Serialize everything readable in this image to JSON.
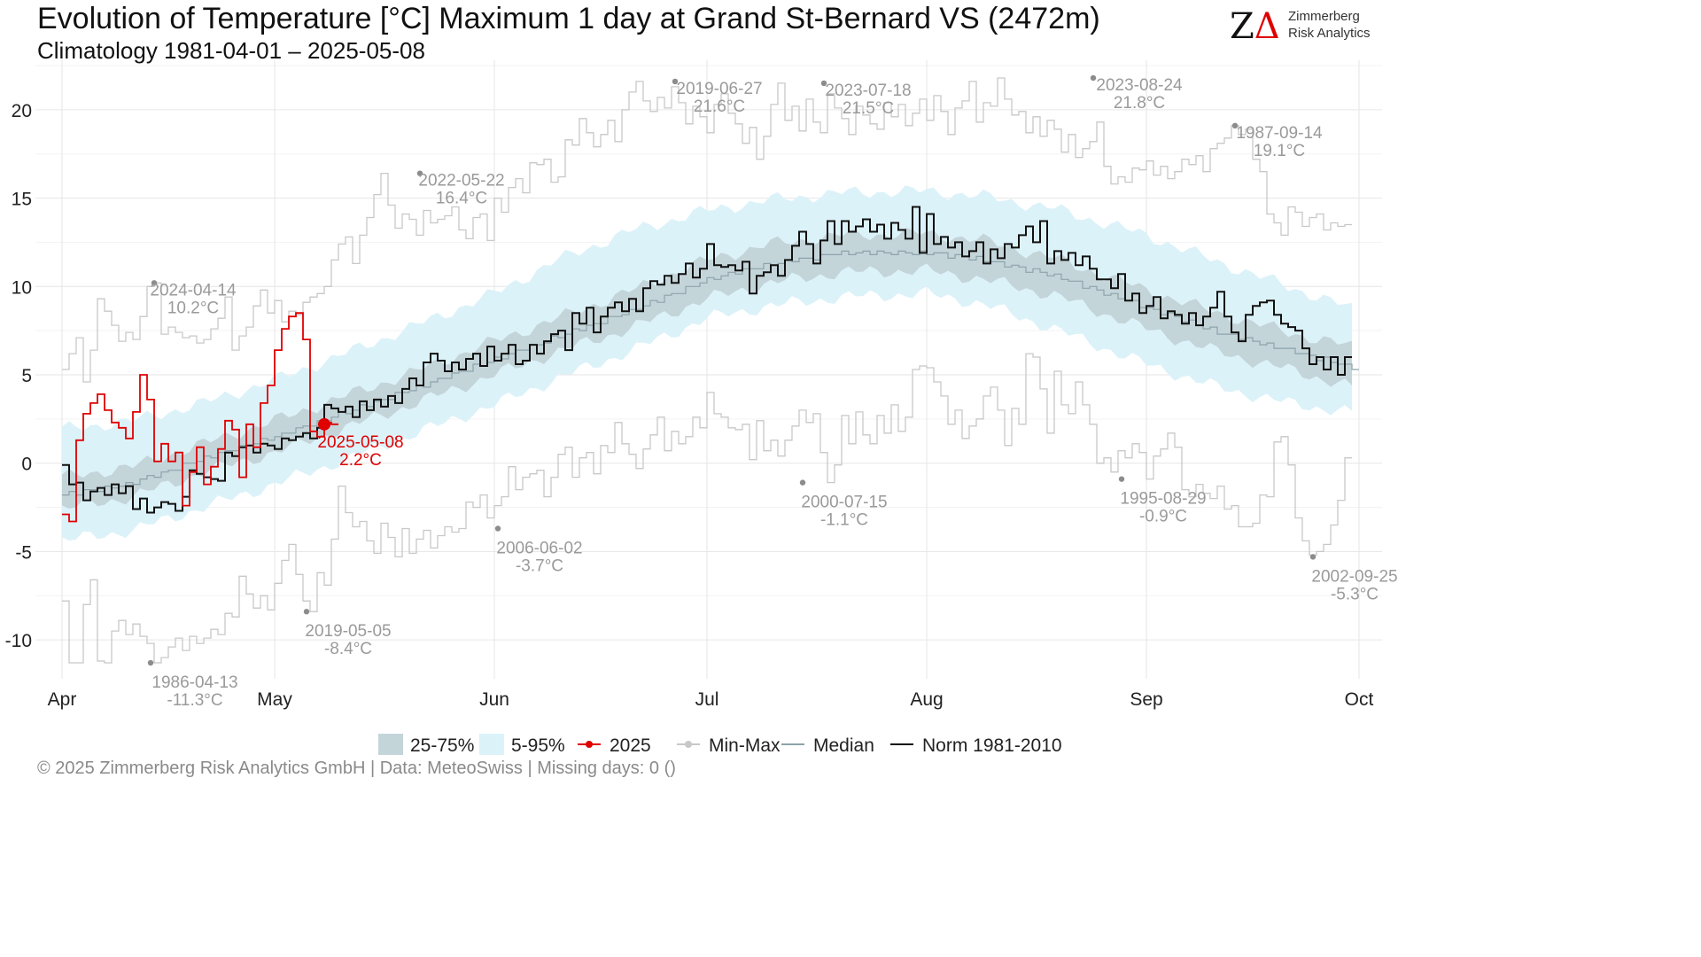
{
  "header": {
    "title": "Evolution of Temperature [°C] Maximum 1 day at Grand St-Bernard  VS (2472m)",
    "subtitle": "Climatology 1981-04-01 – 2025-05-08"
  },
  "logo": {
    "line1": "Zimmerberg",
    "line2": "Risk Analytics",
    "z_color": "#111111",
    "a_color": "#e00000"
  },
  "caption": "©  2025 Zimmerberg Risk Analytics GmbH | Data: MeteoSwiss | Missing days: 0 ()",
  "chart_data": {
    "type": "line",
    "title": "Evolution of Temperature [°C] Maximum 1 day at Grand St-Bernard  VS (2472m)",
    "subtitle": "Climatology 1981-04-01 – 2025-05-08",
    "x_unit": "day of season (Apr 1 = 0)",
    "xlim": [
      0,
      183
    ],
    "ylim": [
      -12,
      22.5
    ],
    "x_ticks": [
      {
        "label": "Apr",
        "x": 0
      },
      {
        "label": "May",
        "x": 30
      },
      {
        "label": "Jun",
        "x": 61
      },
      {
        "label": "Jul",
        "x": 91
      },
      {
        "label": "Aug",
        "x": 122
      },
      {
        "label": "Sep",
        "x": 153
      },
      {
        "label": "Oct",
        "x": 183
      }
    ],
    "y_ticks": [
      -10,
      -5,
      0,
      5,
      10,
      15,
      20
    ],
    "grid": true,
    "legend_position": "bottom",
    "colors": {
      "band_25_75": "#c4d5da",
      "band_5_95": "#dcf2f9",
      "current": "#e00000",
      "minmax": "#c8c8c8",
      "median": "#8da3aa",
      "norm": "#111111",
      "annotation": "#9a9a9a"
    },
    "legend": [
      {
        "key": "band_25_75",
        "label": "25-75%",
        "kind": "box"
      },
      {
        "key": "band_5_95",
        "label": "5-95%",
        "kind": "box"
      },
      {
        "key": "current",
        "label": "2025",
        "kind": "line-dot"
      },
      {
        "key": "minmax",
        "label": "Min-Max",
        "kind": "line-dot"
      },
      {
        "key": "median",
        "label": "Median",
        "kind": "line"
      },
      {
        "key": "norm",
        "label": "Norm 1981-2010",
        "kind": "line"
      }
    ],
    "climatology_points": {
      "x": [
        0,
        10,
        20,
        30,
        40,
        50,
        61,
        70,
        80,
        91,
        100,
        110,
        122,
        130,
        140,
        153,
        163,
        173,
        183
      ],
      "median": [
        -1.8,
        -1.1,
        0.3,
        1.5,
        2.9,
        4.3,
        5.9,
        7.2,
        8.6,
        10.4,
        11.3,
        11.9,
        11.9,
        11.5,
        10.6,
        8.8,
        7.4,
        6.4,
        5.3
      ],
      "p25": [
        -2.6,
        -1.9,
        -0.5,
        0.6,
        2.0,
        3.4,
        5.0,
        6.3,
        7.6,
        9.3,
        10.2,
        10.8,
        10.9,
        10.4,
        9.5,
        7.6,
        6.3,
        5.3,
        4.2
      ],
      "p75": [
        -0.8,
        -0.2,
        1.1,
        2.4,
        3.8,
        5.2,
        6.9,
        8.2,
        9.7,
        11.5,
        12.4,
        12.9,
        13.0,
        12.6,
        11.6,
        9.8,
        8.5,
        7.4,
        6.5
      ],
      "p5": [
        -4.4,
        -3.8,
        -2.5,
        -1.2,
        0.2,
        1.7,
        3.3,
        4.8,
        6.3,
        8.2,
        8.9,
        9.4,
        9.6,
        9.0,
        7.6,
        5.6,
        4.3,
        3.4,
        2.8
      ],
      "p95": [
        1.9,
        2.4,
        3.4,
        4.7,
        6.2,
        7.8,
        9.6,
        11.5,
        13.1,
        14.3,
        14.9,
        15.3,
        15.4,
        15.1,
        14.4,
        12.9,
        11.4,
        10.0,
        8.6
      ]
    },
    "norm_1981_2010": [
      -0.1,
      -1.2,
      -1.1,
      -2.1,
      -1.6,
      -1.4,
      -1.8,
      -1.2,
      -1.7,
      -1.3,
      -2.6,
      -2.0,
      -2.8,
      -2.5,
      -2.2,
      -2.3,
      -2.7,
      -1.9,
      -0.4,
      -0.6,
      -0.8,
      -0.9,
      -1.0,
      0.6,
      0.4,
      0.9,
      1.0,
      0.6,
      1.1,
      1.0,
      0.8,
      1.4,
      1.3,
      1.5,
      1.7,
      1.4,
      2.0,
      3.3,
      3.1,
      2.9,
      3.2,
      2.6,
      3.5,
      3.0,
      3.6,
      3.2,
      3.8,
      3.4,
      4.2,
      4.8,
      4.4,
      5.7,
      6.2,
      5.8,
      5.2,
      5.7,
      5.3,
      5.9,
      6.2,
      5.5,
      6.6,
      5.8,
      6.2,
      6.7,
      5.6,
      5.8,
      6.7,
      6.2,
      6.9,
      7.3,
      7.5,
      6.4,
      8.5,
      7.9,
      8.8,
      7.4,
      8.3,
      8.8,
      9.1,
      8.6,
      9.3,
      8.6,
      9.9,
      10.3,
      10.1,
      10.6,
      10.2,
      10.7,
      11.3,
      10.5,
      11.0,
      12.4,
      11.2,
      11.1,
      11.2,
      10.9,
      11.4,
      9.6,
      10.6,
      10.8,
      11.2,
      10.6,
      11.5,
      12.3,
      13.1,
      12.4,
      11.3,
      12.6,
      13.7,
      12.4,
      13.7,
      13.1,
      13.4,
      13.8,
      13.1,
      13.5,
      12.7,
      13.6,
      13.2,
      12.7,
      14.5,
      11.9,
      14.1,
      12.4,
      12.8,
      12.2,
      12.5,
      11.7,
      12.0,
      12.5,
      11.3,
      12.1,
      11.6,
      12.4,
      12.2,
      12.9,
      13.4,
      12.5,
      13.7,
      11.3,
      12.0,
      11.5,
      11.9,
      11.2,
      11.7,
      11.0,
      10.4,
      10.4,
      9.9,
      10.7,
      9.2,
      9.6,
      8.5,
      8.9,
      9.4,
      8.2,
      8.6,
      8.4,
      7.9,
      8.5,
      7.8,
      8.3,
      8.8,
      9.7,
      8.3,
      7.4,
      6.9,
      8.4,
      8.9,
      9.1,
      9.2,
      8.4,
      7.9,
      7.7,
      7.5,
      6.5,
      5.6,
      6.0,
      5.3,
      6.0,
      5.0,
      6.0
    ],
    "current_2025": [
      -2.9,
      -3.3,
      1.3,
      2.8,
      3.4,
      3.9,
      3.0,
      2.3,
      2.0,
      1.4,
      2.9,
      5.0,
      3.6,
      0.1,
      1.1,
      0.1,
      0.6,
      -2.4,
      -0.5,
      0.9,
      -1.2,
      -0.2,
      0.8,
      2.4,
      1.9,
      -0.8,
      2.2,
      0.9,
      3.4,
      4.4,
      6.4,
      7.6,
      8.3,
      8.5,
      7.0,
      1.8,
      1.5,
      2.3,
      2.2
    ],
    "record_max": [
      5.3,
      6.2,
      7.1,
      4.6,
      6.4,
      9.3,
      8.6,
      7.8,
      6.9,
      7.4,
      7.0,
      8.3,
      10.0,
      10.2,
      7.3,
      7.7,
      7.4,
      7.1,
      7.2,
      6.8,
      7.0,
      7.6,
      8.2,
      9.4,
      6.4,
      7.2,
      7.7,
      8.9,
      9.8,
      8.5,
      9.2,
      8.0,
      8.6,
      8.4,
      9.1,
      9.4,
      9.6,
      10.0,
      11.5,
      12.4,
      12.8,
      11.3,
      12.9,
      13.9,
      15.2,
      16.4,
      14.6,
      13.3,
      14.1,
      13.8,
      12.9,
      14.3,
      13.6,
      13.8,
      14.0,
      14.5,
      13.2,
      12.7,
      13.9,
      14.1,
      12.6,
      15.0,
      14.2,
      15.6,
      16.1,
      15.3,
      17.0,
      16.9,
      17.2,
      15.9,
      16.2,
      18.3,
      18.0,
      19.5,
      18.7,
      17.9,
      18.6,
      19.4,
      18.2,
      20.0,
      21.0,
      21.6,
      20.5,
      19.9,
      20.7,
      20.1,
      21.3,
      20.4,
      19.2,
      20.2,
      19.6,
      18.7,
      20.3,
      20.9,
      19.8,
      19.2,
      18.1,
      19.0,
      17.2,
      18.5,
      20.3,
      21.5,
      19.4,
      20.2,
      18.8,
      20.6,
      19.3,
      18.7,
      20.9,
      20.1,
      19.5,
      18.6,
      20.2,
      19.7,
      19.2,
      18.9,
      20.4,
      19.6,
      20.3,
      19.1,
      19.8,
      20.6,
      19.4,
      20.8,
      19.9,
      18.6,
      20.1,
      20.5,
      21.6,
      19.3,
      20.4,
      20.2,
      21.8,
      20.6,
      19.7,
      19.9,
      18.7,
      19.6,
      18.5,
      19.4,
      18.9,
      17.6,
      18.6,
      17.3,
      17.8,
      18.2,
      19.3,
      16.8,
      15.8,
      16.2,
      15.9,
      16.7,
      16.6,
      17.1,
      16.3,
      16.8,
      16.1,
      16.5,
      17.2,
      16.9,
      17.4,
      16.5,
      17.8,
      18.1,
      18.4,
      19.1,
      18.6,
      18.9,
      17.2,
      16.5,
      14.1,
      13.6,
      12.9,
      14.5,
      14.2,
      13.4,
      13.9,
      14.1,
      13.2,
      13.6,
      13.4,
      13.5
    ],
    "record_min": [
      -7.8,
      -11.3,
      -11.3,
      -8.0,
      -6.6,
      -11.2,
      -11.3,
      -9.5,
      -8.9,
      -9.7,
      -9.1,
      -9.8,
      -10.2,
      -11.3,
      -11.0,
      -10.4,
      -9.9,
      -10.6,
      -9.8,
      -10.2,
      -9.9,
      -9.4,
      -9.7,
      -8.5,
      -8.7,
      -6.4,
      -7.4,
      -8.2,
      -7.5,
      -8.3,
      -6.8,
      -5.5,
      -4.6,
      -6.3,
      -7.8,
      -8.4,
      -6.2,
      -6.9,
      -4.3,
      -1.3,
      -2.8,
      -3.6,
      -3.3,
      -4.4,
      -5.1,
      -3.4,
      -4.2,
      -5.3,
      -3.7,
      -5.1,
      -4.3,
      -3.8,
      -4.8,
      -4.1,
      -3.6,
      -3.9,
      -3.7,
      -2.2,
      -2.5,
      -1.8,
      -3.1,
      -2.4,
      -1.9,
      -0.2,
      -1.5,
      -0.8,
      -0.6,
      -0.4,
      -1.9,
      -0.8,
      0.5,
      0.9,
      -0.8,
      0.3,
      0.6,
      -0.6,
      1.0,
      0.6,
      2.3,
      1.1,
      0.5,
      -0.3,
      0.8,
      1.6,
      2.6,
      0.7,
      1.8,
      1.1,
      1.5,
      2.6,
      2.0,
      4.0,
      2.8,
      2.6,
      2.0,
      1.9,
      2.2,
      0.2,
      2.4,
      0.7,
      1.3,
      0.4,
      1.3,
      2.1,
      3.0,
      2.3,
      2.8,
      0.6,
      -1.1,
      -0.1,
      2.7,
      1.1,
      2.9,
      1.6,
      1.1,
      2.7,
      1.7,
      3.3,
      1.8,
      2.6,
      5.3,
      5.5,
      5.4,
      4.6,
      3.8,
      2.2,
      3.0,
      1.4,
      2.1,
      2.5,
      3.8,
      4.3,
      3.0,
      1.0,
      3.1,
      2.2,
      6.2,
      6.0,
      4.2,
      1.7,
      5.2,
      3.3,
      2.8,
      4.6,
      3.3,
      2.2,
      0.0,
      0.3,
      -0.5,
      0.7,
      0.3,
      1.1,
      0.6,
      -0.9,
      0.4,
      0.8,
      1.7,
      0.9,
      -1.5,
      -1.9,
      -1.2,
      -1.7,
      -2.0,
      -1.3,
      -2.6,
      -2.4,
      -3.6,
      -3.6,
      -3.4,
      -1.8,
      -1.9,
      1.2,
      1.5,
      -0.1,
      -3.1,
      -4.4,
      -5.2,
      -5.0,
      -4.6,
      -3.5,
      -2.1,
      0.3
    ],
    "annotations": [
      {
        "date": "2024-04-14",
        "value_label": "10.2°C",
        "x": 13,
        "y": 10.2,
        "text_dx": 2
      },
      {
        "date": "1986-04-13",
        "value_label": "-11.3°C",
        "x": 12.5,
        "y": -11.3,
        "text_dx": 8
      },
      {
        "date": "2019-05-05",
        "value_label": "-8.4°C",
        "x": 34.5,
        "y": -8.4,
        "text_dx": 5
      },
      {
        "date": "2022-05-22",
        "value_label": "16.4°C",
        "x": 50.5,
        "y": 16.4,
        "text_dx": 5
      },
      {
        "date": "2006-06-02",
        "value_label": "-3.7°C",
        "x": 61.5,
        "y": -3.7,
        "text_dx": 5
      },
      {
        "date": "2019-06-27",
        "value_label": "21.6°C",
        "x": 86.5,
        "y": 21.6,
        "text_dx": 8
      },
      {
        "date": "2000-07-15",
        "value_label": "-1.1°C",
        "x": 104.5,
        "y": -1.1,
        "text_dx": 5
      },
      {
        "date": "2023-07-18",
        "value_label": "21.5°C",
        "x": 107.5,
        "y": 21.5,
        "text_dx": 8
      },
      {
        "date": "2023-08-24",
        "value_label": "21.8°C",
        "x": 145.5,
        "y": 21.8,
        "text_dx": 10
      },
      {
        "date": "1995-08-29",
        "value_label": "-0.9°C",
        "x": 149.5,
        "y": -0.9,
        "text_dx": 5
      },
      {
        "date": "1987-09-14",
        "value_label": "19.1°C",
        "x": 165.5,
        "y": 19.1,
        "text_dx": 8
      },
      {
        "date": "2002-09-25",
        "value_label": "-5.3°C",
        "x": 176.5,
        "y": -5.3,
        "text_dx": 5
      }
    ],
    "current_label": {
      "date": "2025-05-08",
      "value_label": "2.2°C",
      "x": 37,
      "y": 2.2
    }
  }
}
